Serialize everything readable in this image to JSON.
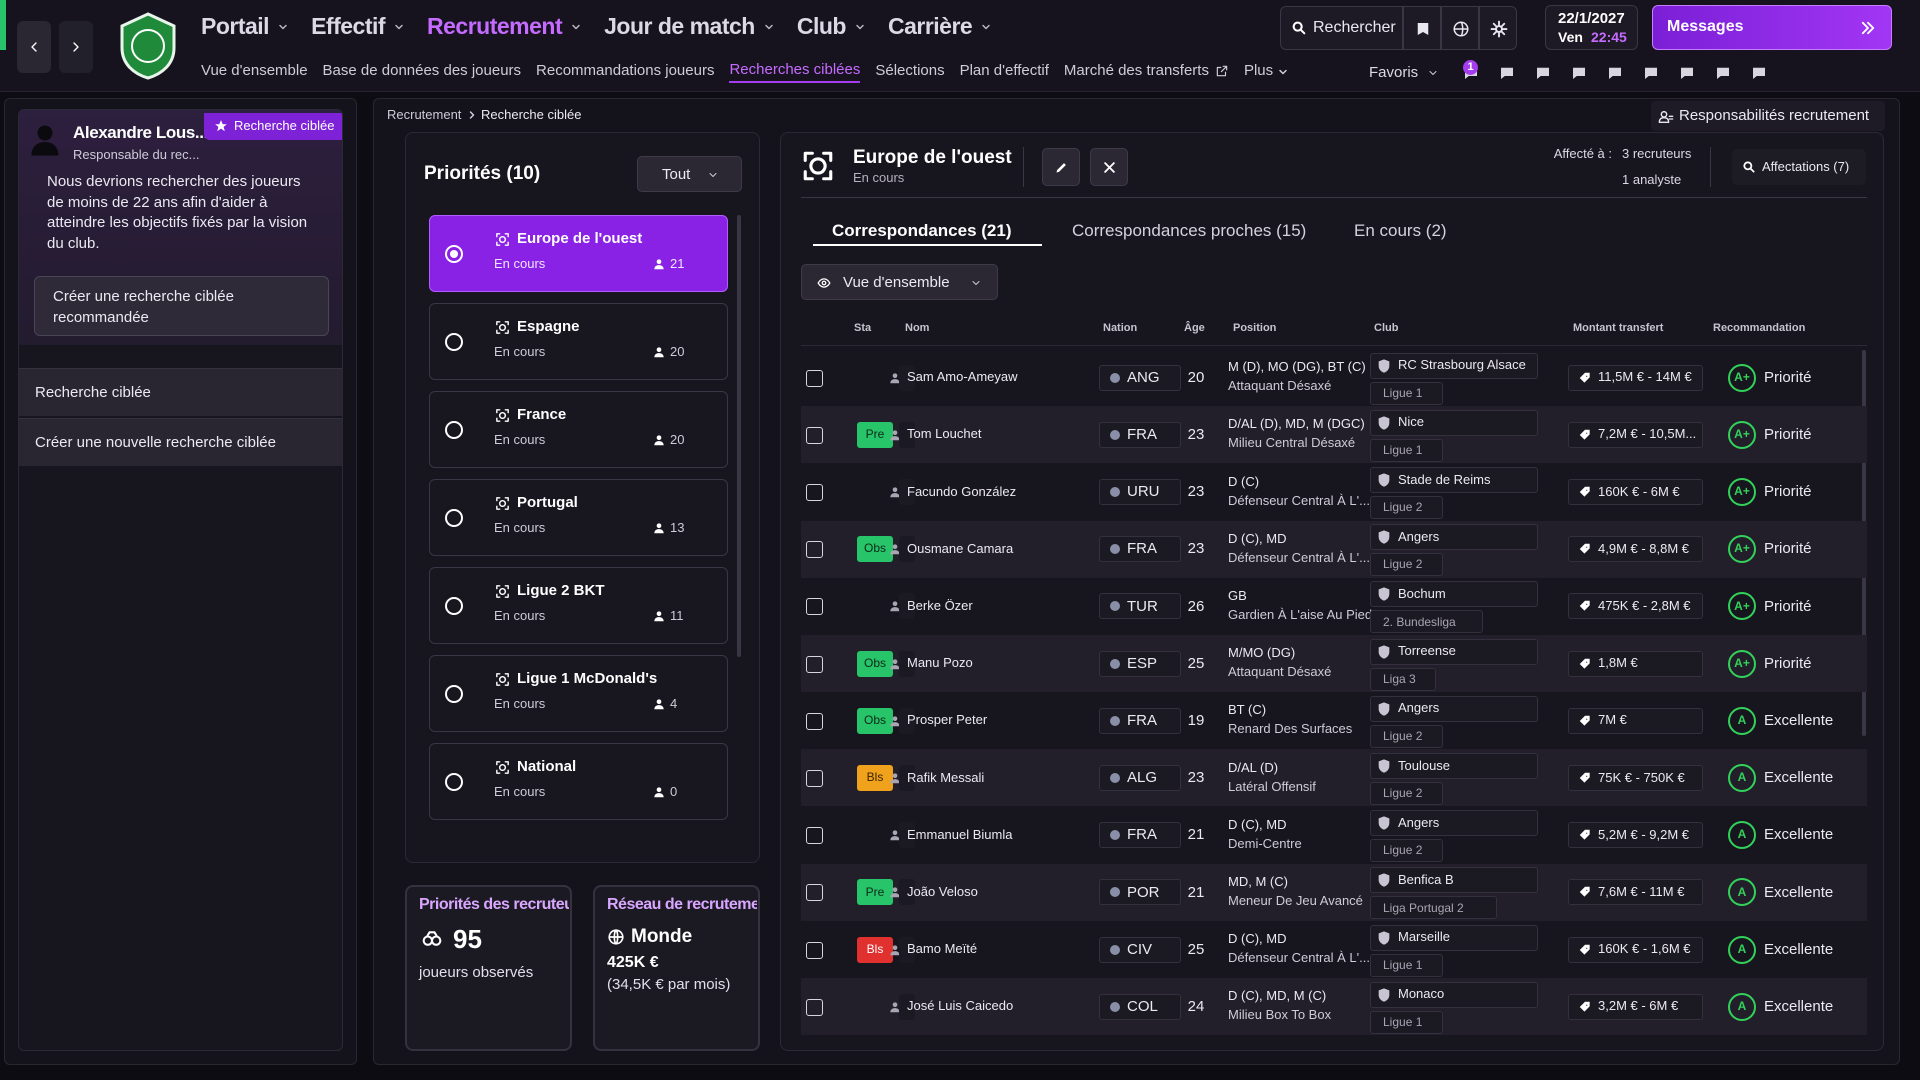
{
  "nav": {
    "top_menu": [
      "Portail",
      "Effectif",
      "Recrutement",
      "Jour de match",
      "Club",
      "Carrière"
    ],
    "sub_menu": [
      "Vue d'ensemble",
      "Base de données des joueurs",
      "Recommandations joueurs",
      "Recherches ciblées",
      "Sélections",
      "Plan d'effectif",
      "Marché des transferts",
      "Plus"
    ],
    "search": "Rechercher",
    "date": "22/1/2027",
    "day": "Ven",
    "time": "22:45",
    "messages": "Messages",
    "favorites": "Favoris",
    "notification_count": 1
  },
  "sidebar": {
    "name": "Alexandre Lous...",
    "role": "Responsable du rec...",
    "tag": "Recherche ciblée",
    "message": "Nous devrions rechercher des joueurs de moins de 22 ans afin d'aider à atteindre les objectifs fixés par la vision du club.",
    "button": "Créer une recherche ciblée recommandée",
    "links": [
      "Recherche ciblée",
      "Créer une nouvelle recherche ciblée"
    ]
  },
  "breadcrumb": [
    "Recrutement",
    "Recherche ciblée"
  ],
  "responsibilities": "Responsabilités recrutement",
  "priorities": {
    "title": "Priorités (10)",
    "filter": "Tout",
    "items": [
      {
        "name": "Europe de l'ouest",
        "status": "En cours",
        "count": 21
      },
      {
        "name": "Espagne",
        "status": "En cours",
        "count": 20
      },
      {
        "name": "France",
        "status": "En cours",
        "count": 20
      },
      {
        "name": "Portugal",
        "status": "En cours",
        "count": 13
      },
      {
        "name": "Ligue 2 BKT",
        "status": "En cours",
        "count": 11
      },
      {
        "name": "Ligue 1 McDonald's",
        "status": "En cours",
        "count": 4
      },
      {
        "name": "National",
        "status": "En cours",
        "count": 0
      }
    ]
  },
  "cards": {
    "scouting": {
      "title": "Priorités des recruteu",
      "value": 95,
      "caption": "joueurs observés"
    },
    "network": {
      "title": "Réseau de recrutemen",
      "region": "Monde",
      "budget": "425K €",
      "monthly": "(34,5K € par mois)"
    }
  },
  "search": {
    "title": "Europe de l'ouest",
    "status": "En cours",
    "assigned_label": "Affecté à :",
    "scouts": "3 recruteurs",
    "analysts": "1 analyste",
    "assignments": "Affectations (7)",
    "tabs": [
      "Correspondances (21)",
      "Correspondances proches (15)",
      "En cours (2)"
    ],
    "view": "Vue d'ensemble",
    "columns": [
      "Sta",
      "Nom",
      "Nation",
      "Âge",
      "Position",
      "Club",
      "Montant transfert",
      "Recommandation"
    ],
    "rows": [
      {
        "name": "Sam Amo-Ameyaw",
        "nation": "ANG",
        "age": 20,
        "position": "M (D), MO (DG), BT (C)",
        "role": "Attaquant Désaxé",
        "club": "RC Strasbourg Alsace",
        "league": "Ligue 1",
        "fee": "11,5M € - 14M €",
        "grade": "A+",
        "recommendation": "Priorité"
      },
      {
        "status": "Pre",
        "status_color": "#27c46a",
        "name": "Tom Louchet",
        "nation": "FRA",
        "age": 23,
        "position": "D/AL (D), MD, M (DGC)",
        "role": "Milieu Central Désaxé",
        "club": "Nice",
        "league": "Ligue 1",
        "fee": "7,2M € - 10,5M...",
        "grade": "A+",
        "recommendation": "Priorité"
      },
      {
        "name": "Facundo González",
        "nation": "URU",
        "age": 23,
        "position": "D (C)",
        "role": "Défenseur Central À L'...",
        "club": "Stade de Reims",
        "league": "Ligue 2",
        "fee": "160K € - 6M €",
        "grade": "A+",
        "recommendation": "Priorité"
      },
      {
        "status": "Obs",
        "status_color": "#27c46a",
        "name": "Ousmane Camara",
        "nation": "FRA",
        "age": 23,
        "position": "D (C), MD",
        "role": "Défenseur Central À L'...",
        "club": "Angers",
        "league": "Ligue 2",
        "fee": "4,9M € - 8,8M €",
        "grade": "A+",
        "recommendation": "Priorité"
      },
      {
        "name": "Berke Özer",
        "nation": "TUR",
        "age": 26,
        "position": "GB",
        "role": "Gardien À L'aise Au Pied",
        "club": "Bochum",
        "league": "2. Bundesliga",
        "fee": "475K € - 2,8M €",
        "grade": "A+",
        "recommendation": "Priorité"
      },
      {
        "status": "Obs",
        "status_color": "#27c46a",
        "name": "Manu Pozo",
        "nation": "ESP",
        "age": 25,
        "position": "M/MO (DG)",
        "role": "Attaquant Désaxé",
        "club": "Torreense",
        "league": "Liga 3",
        "fee": "1,8M €",
        "grade": "A+",
        "recommendation": "Priorité"
      },
      {
        "status": "Obs",
        "status_color": "#27c46a",
        "name": "Prosper Peter",
        "nation": "FRA",
        "age": 19,
        "position": "BT (C)",
        "role": "Renard Des Surfaces",
        "club": "Angers",
        "league": "Ligue 2",
        "fee": "7M €",
        "grade": "A",
        "recommendation": "Excellente"
      },
      {
        "status": "Bls",
        "status_color": "#f0a21c",
        "name": "Rafik Messali",
        "nation": "ALG",
        "age": 23,
        "position": "D/AL (D)",
        "role": "Latéral Offensif",
        "club": "Toulouse",
        "league": "Ligue 2",
        "fee": "75K € - 750K €",
        "grade": "A",
        "recommendation": "Excellente"
      },
      {
        "name": "Emmanuel Biumla",
        "nation": "FRA",
        "age": 21,
        "position": "D (C), MD",
        "role": "Demi-Centre",
        "club": "Angers",
        "league": "Ligue 2",
        "fee": "5,2M € - 9,2M €",
        "grade": "A",
        "recommendation": "Excellente"
      },
      {
        "status": "Pre",
        "status_color": "#27c46a",
        "name": "João Veloso",
        "nation": "POR",
        "age": 21,
        "position": "MD, M (C)",
        "role": "Meneur De Jeu Avancé",
        "club": "Benfica B",
        "league": "Liga Portugal 2",
        "fee": "7,6M € - 11M €",
        "grade": "A",
        "recommendation": "Excellente"
      },
      {
        "status": "Bls",
        "status_color": "#e0312f",
        "name": "Bamo Meïté",
        "nation": "CIV",
        "age": 25,
        "position": "D (C), MD",
        "role": "Défenseur Central À L'...",
        "club": "Marseille",
        "league": "Ligue 1",
        "fee": "160K € - 1,6M €",
        "grade": "A",
        "recommendation": "Excellente"
      },
      {
        "name": "José Luis Caicedo",
        "nation": "COL",
        "age": 24,
        "position": "D (C), MD, M (C)",
        "role": "Milieu Box To Box",
        "club": "Monaco",
        "league": "Ligue 1",
        "fee": "3,2M € - 6M €",
        "grade": "A",
        "recommendation": "Excellente"
      }
    ]
  }
}
